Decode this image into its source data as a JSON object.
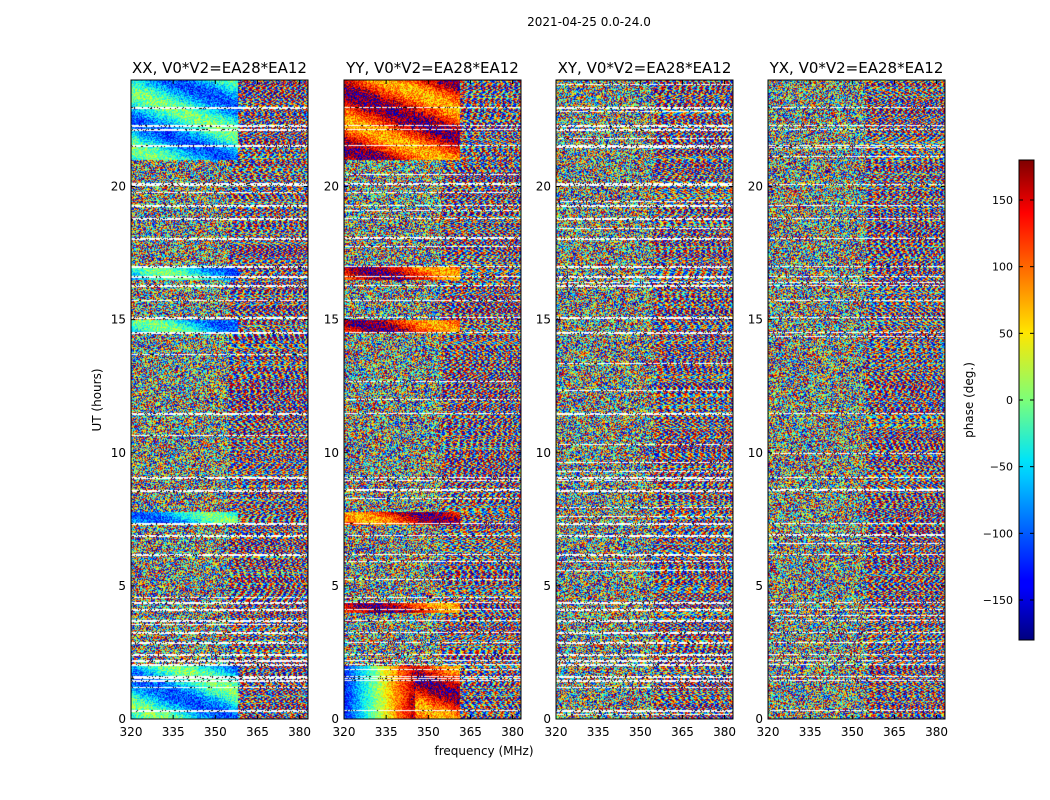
{
  "chart_data": {
    "type": "heatmap",
    "suptitle": "2021-04-25 0.0-24.0",
    "xlabel": "frequency (MHz)",
    "ylabel": "UT (hours)",
    "xlim": [
      320,
      383
    ],
    "ylim": [
      0,
      24
    ],
    "xticks": [
      320,
      335,
      350,
      365,
      380
    ],
    "yticks": [
      0,
      5,
      10,
      15,
      20
    ],
    "panels": [
      {
        "title": "XX, V0*V2=EA28*EA12",
        "pol": "XX"
      },
      {
        "title": "YY, V0*V2=EA28*EA12",
        "pol": "YY"
      },
      {
        "title": "XY, V0*V2=EA28*EA12",
        "pol": "XY"
      },
      {
        "title": "YX, V0*V2=EA28*EA12",
        "pol": "YX"
      }
    ],
    "colorbar": {
      "label": "phase (deg.)",
      "range": [
        -180,
        180
      ],
      "ticks": [
        -150,
        -100,
        -50,
        0,
        50,
        100,
        150
      ],
      "colormap": "jet"
    },
    "flagged_hours": [
      0.35,
      1.45,
      1.6,
      2.05,
      2.2,
      2.45,
      2.9,
      3.25,
      3.7,
      4.15,
      4.4,
      6.2,
      6.9,
      7.35,
      8.6,
      9.1,
      11.5,
      14.55,
      15.1,
      16.3,
      16.65,
      17.0,
      18.05,
      18.8,
      19.3,
      20.1,
      21.55,
      22.15,
      22.3,
      23.0
    ]
  }
}
